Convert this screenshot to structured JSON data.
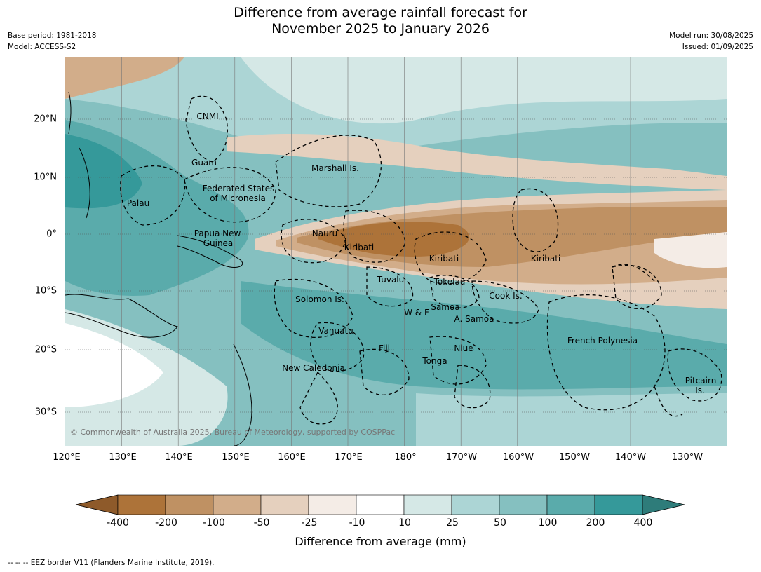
{
  "header": {
    "title_line1": "Difference from average rainfall forecast for",
    "title_line2": "November 2025 to January 2026",
    "base_period": "Base period: 1981-2018",
    "model": "Model: ACCESS-S2",
    "model_run": "Model run: 30/08/2025",
    "issued": "Issued: 01/09/2025"
  },
  "map": {
    "lat_labels": [
      "20°N",
      "10°N",
      "0°",
      "10°S",
      "20°S",
      "30°S"
    ],
    "lon_labels": [
      "120°E",
      "130°E",
      "140°E",
      "150°E",
      "160°E",
      "170°E",
      "180°",
      "170°W",
      "160°W",
      "150°W",
      "140°W",
      "130°W"
    ],
    "regions": [
      {
        "name": "CNMI"
      },
      {
        "name": "Guam"
      },
      {
        "name": "Marshall Is."
      },
      {
        "name": "Federated States"
      },
      {
        "name": "of Micronesia"
      },
      {
        "name": "Palau"
      },
      {
        "name": "Papua New"
      },
      {
        "name": "Guinea"
      },
      {
        "name": "Nauru"
      },
      {
        "name": "Kiribati"
      },
      {
        "name": "Kiribati"
      },
      {
        "name": "Kiribati"
      },
      {
        "name": "Tuvalu"
      },
      {
        "name": "Tokelau"
      },
      {
        "name": "Cook Is."
      },
      {
        "name": "Solomon Is."
      },
      {
        "name": "Samoa"
      },
      {
        "name": "W & F"
      },
      {
        "name": "A. Samoa"
      },
      {
        "name": "Vanuatu"
      },
      {
        "name": "Fiji"
      },
      {
        "name": "Niue"
      },
      {
        "name": "Tonga"
      },
      {
        "name": "French Polynesia"
      },
      {
        "name": "New Caledonia"
      },
      {
        "name": "Pitcairn"
      },
      {
        "name": "Is."
      }
    ],
    "copyright": "© Commonwealth of Australia 2025, Bureau of Meteorology, supported by COSPPac"
  },
  "colorbar": {
    "ticks": [
      "-400",
      "-200",
      "-100",
      "-50",
      "-25",
      "-10",
      "10",
      "25",
      "50",
      "100",
      "200",
      "400"
    ],
    "colors": {
      "below_min": "#8e5a2a",
      "bins": [
        "#ad7339",
        "#bf9163",
        "#d2ad8a",
        "#e5d0be",
        "#f4ece6",
        "#ffffff",
        "#d5e8e6",
        "#acd5d5",
        "#85c0c0",
        "#5aabab",
        "#35999a"
      ],
      "above_max": "#2e7c7a"
    },
    "label": "Difference from average (mm)"
  },
  "footnote": "--  --  -- EEZ border V11 (Flanders Marine Institute, 2019)."
}
